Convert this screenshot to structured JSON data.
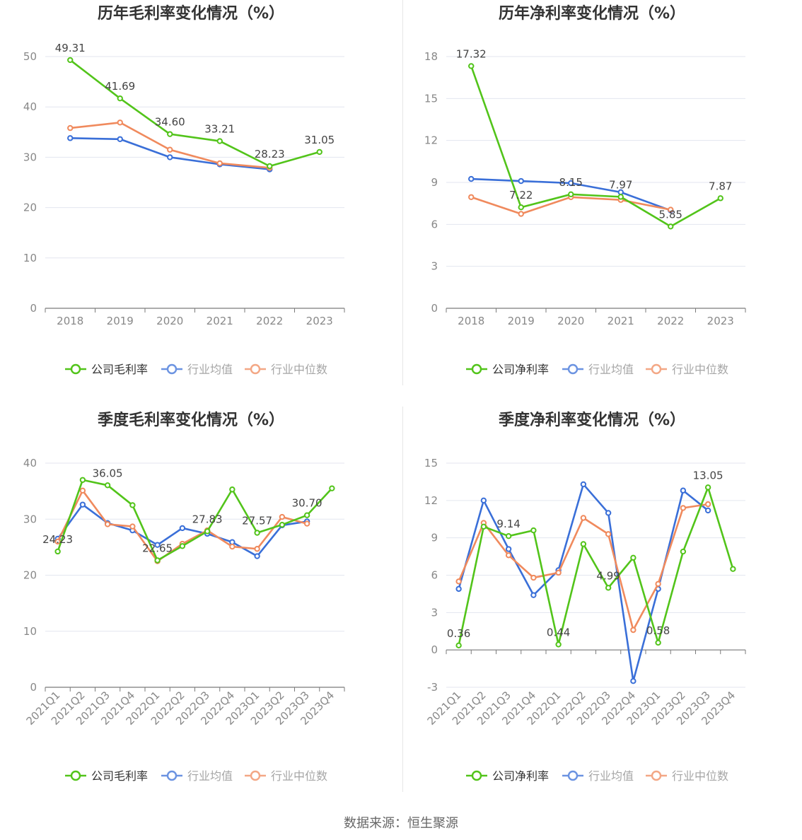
{
  "source": "数据来源：恒生聚源",
  "colors": {
    "company": "#52c41a",
    "avg": "#3a6fd8",
    "median": "#f08a5d"
  },
  "chart_data": [
    {
      "type": "line",
      "title": "历年毛利率变化情况（%）",
      "categories": [
        "2018",
        "2019",
        "2020",
        "2021",
        "2022",
        "2023"
      ],
      "ylim": [
        0,
        50
      ],
      "yticks": [
        0,
        10,
        20,
        30,
        40,
        50
      ],
      "rotate_labels": false,
      "grid": true,
      "legend_position": "bottom",
      "series": [
        {
          "name": "公司毛利率",
          "key": "company",
          "values": [
            49.31,
            41.69,
            34.6,
            33.21,
            28.23,
            31.05
          ],
          "labels": [
            0,
            1,
            2,
            3,
            4,
            5
          ]
        },
        {
          "name": "行业均值",
          "key": "avg",
          "values": [
            33.8,
            33.6,
            30.0,
            28.6,
            27.6,
            null
          ]
        },
        {
          "name": "行业中位数",
          "key": "median",
          "values": [
            35.8,
            36.9,
            31.5,
            28.8,
            27.9,
            null
          ]
        }
      ]
    },
    {
      "type": "line",
      "title": "历年净利率变化情况（%）",
      "categories": [
        "2018",
        "2019",
        "2020",
        "2021",
        "2022",
        "2023"
      ],
      "ylim": [
        0,
        18
      ],
      "yticks": [
        0,
        3,
        6,
        9,
        12,
        15,
        18
      ],
      "rotate_labels": false,
      "grid": true,
      "legend_position": "bottom",
      "series": [
        {
          "name": "公司净利率",
          "key": "company",
          "values": [
            17.32,
            7.22,
            8.15,
            7.97,
            5.85,
            7.87
          ],
          "labels": [
            0,
            1,
            2,
            3,
            4,
            5
          ]
        },
        {
          "name": "行业均值",
          "key": "avg",
          "values": [
            9.25,
            9.1,
            8.95,
            8.3,
            7.0,
            null
          ]
        },
        {
          "name": "行业中位数",
          "key": "median",
          "values": [
            7.95,
            6.75,
            7.95,
            7.75,
            7.05,
            null
          ]
        }
      ]
    },
    {
      "type": "line",
      "title": "季度毛利率变化情况（%）",
      "categories": [
        "2021Q1",
        "2021Q2",
        "2021Q3",
        "2021Q4",
        "2022Q1",
        "2022Q2",
        "2022Q3",
        "2022Q4",
        "2023Q1",
        "2023Q2",
        "2023Q3",
        "2023Q4"
      ],
      "ylim": [
        0,
        40
      ],
      "yticks": [
        0,
        10,
        20,
        30,
        40
      ],
      "rotate_labels": true,
      "grid": true,
      "legend_position": "bottom",
      "series": [
        {
          "name": "公司毛利率",
          "key": "company",
          "values": [
            24.23,
            37.0,
            36.05,
            32.5,
            22.65,
            25.2,
            27.83,
            35.3,
            27.57,
            29.0,
            30.7,
            35.5
          ],
          "labels": [
            0,
            2,
            4,
            6,
            8,
            10
          ]
        },
        {
          "name": "行业均值",
          "key": "avg",
          "values": [
            26.5,
            32.6,
            29.3,
            28.0,
            25.4,
            28.4,
            27.4,
            25.9,
            23.4,
            28.9,
            29.6,
            null
          ]
        },
        {
          "name": "行业中位数",
          "key": "median",
          "values": [
            26.0,
            35.1,
            29.1,
            28.7,
            22.5,
            25.6,
            28.0,
            25.1,
            24.7,
            30.4,
            29.2,
            null
          ]
        }
      ]
    },
    {
      "type": "line",
      "title": "季度净利率变化情况（%）",
      "categories": [
        "2021Q1",
        "2021Q2",
        "2021Q3",
        "2021Q4",
        "2022Q1",
        "2022Q2",
        "2022Q3",
        "2022Q4",
        "2023Q1",
        "2023Q2",
        "2023Q3",
        "2023Q4"
      ],
      "ylim": [
        -3,
        15
      ],
      "yticks": [
        -3,
        0,
        3,
        6,
        9,
        12,
        15
      ],
      "rotate_labels": true,
      "grid": true,
      "legend_position": "bottom",
      "series": [
        {
          "name": "公司净利率",
          "key": "company",
          "values": [
            0.36,
            9.9,
            9.14,
            9.6,
            0.44,
            8.5,
            4.99,
            7.4,
            0.58,
            7.9,
            13.05,
            6.5
          ],
          "labels": [
            0,
            2,
            4,
            6,
            8,
            10
          ]
        },
        {
          "name": "行业均值",
          "key": "avg",
          "values": [
            4.9,
            12.0,
            8.1,
            4.4,
            6.4,
            13.3,
            11.0,
            -2.5,
            4.9,
            12.8,
            11.2,
            null
          ]
        },
        {
          "name": "行业中位数",
          "key": "median",
          "values": [
            5.5,
            10.2,
            7.6,
            5.8,
            6.2,
            10.6,
            9.3,
            1.6,
            5.3,
            11.4,
            11.7,
            null
          ]
        }
      ]
    }
  ]
}
